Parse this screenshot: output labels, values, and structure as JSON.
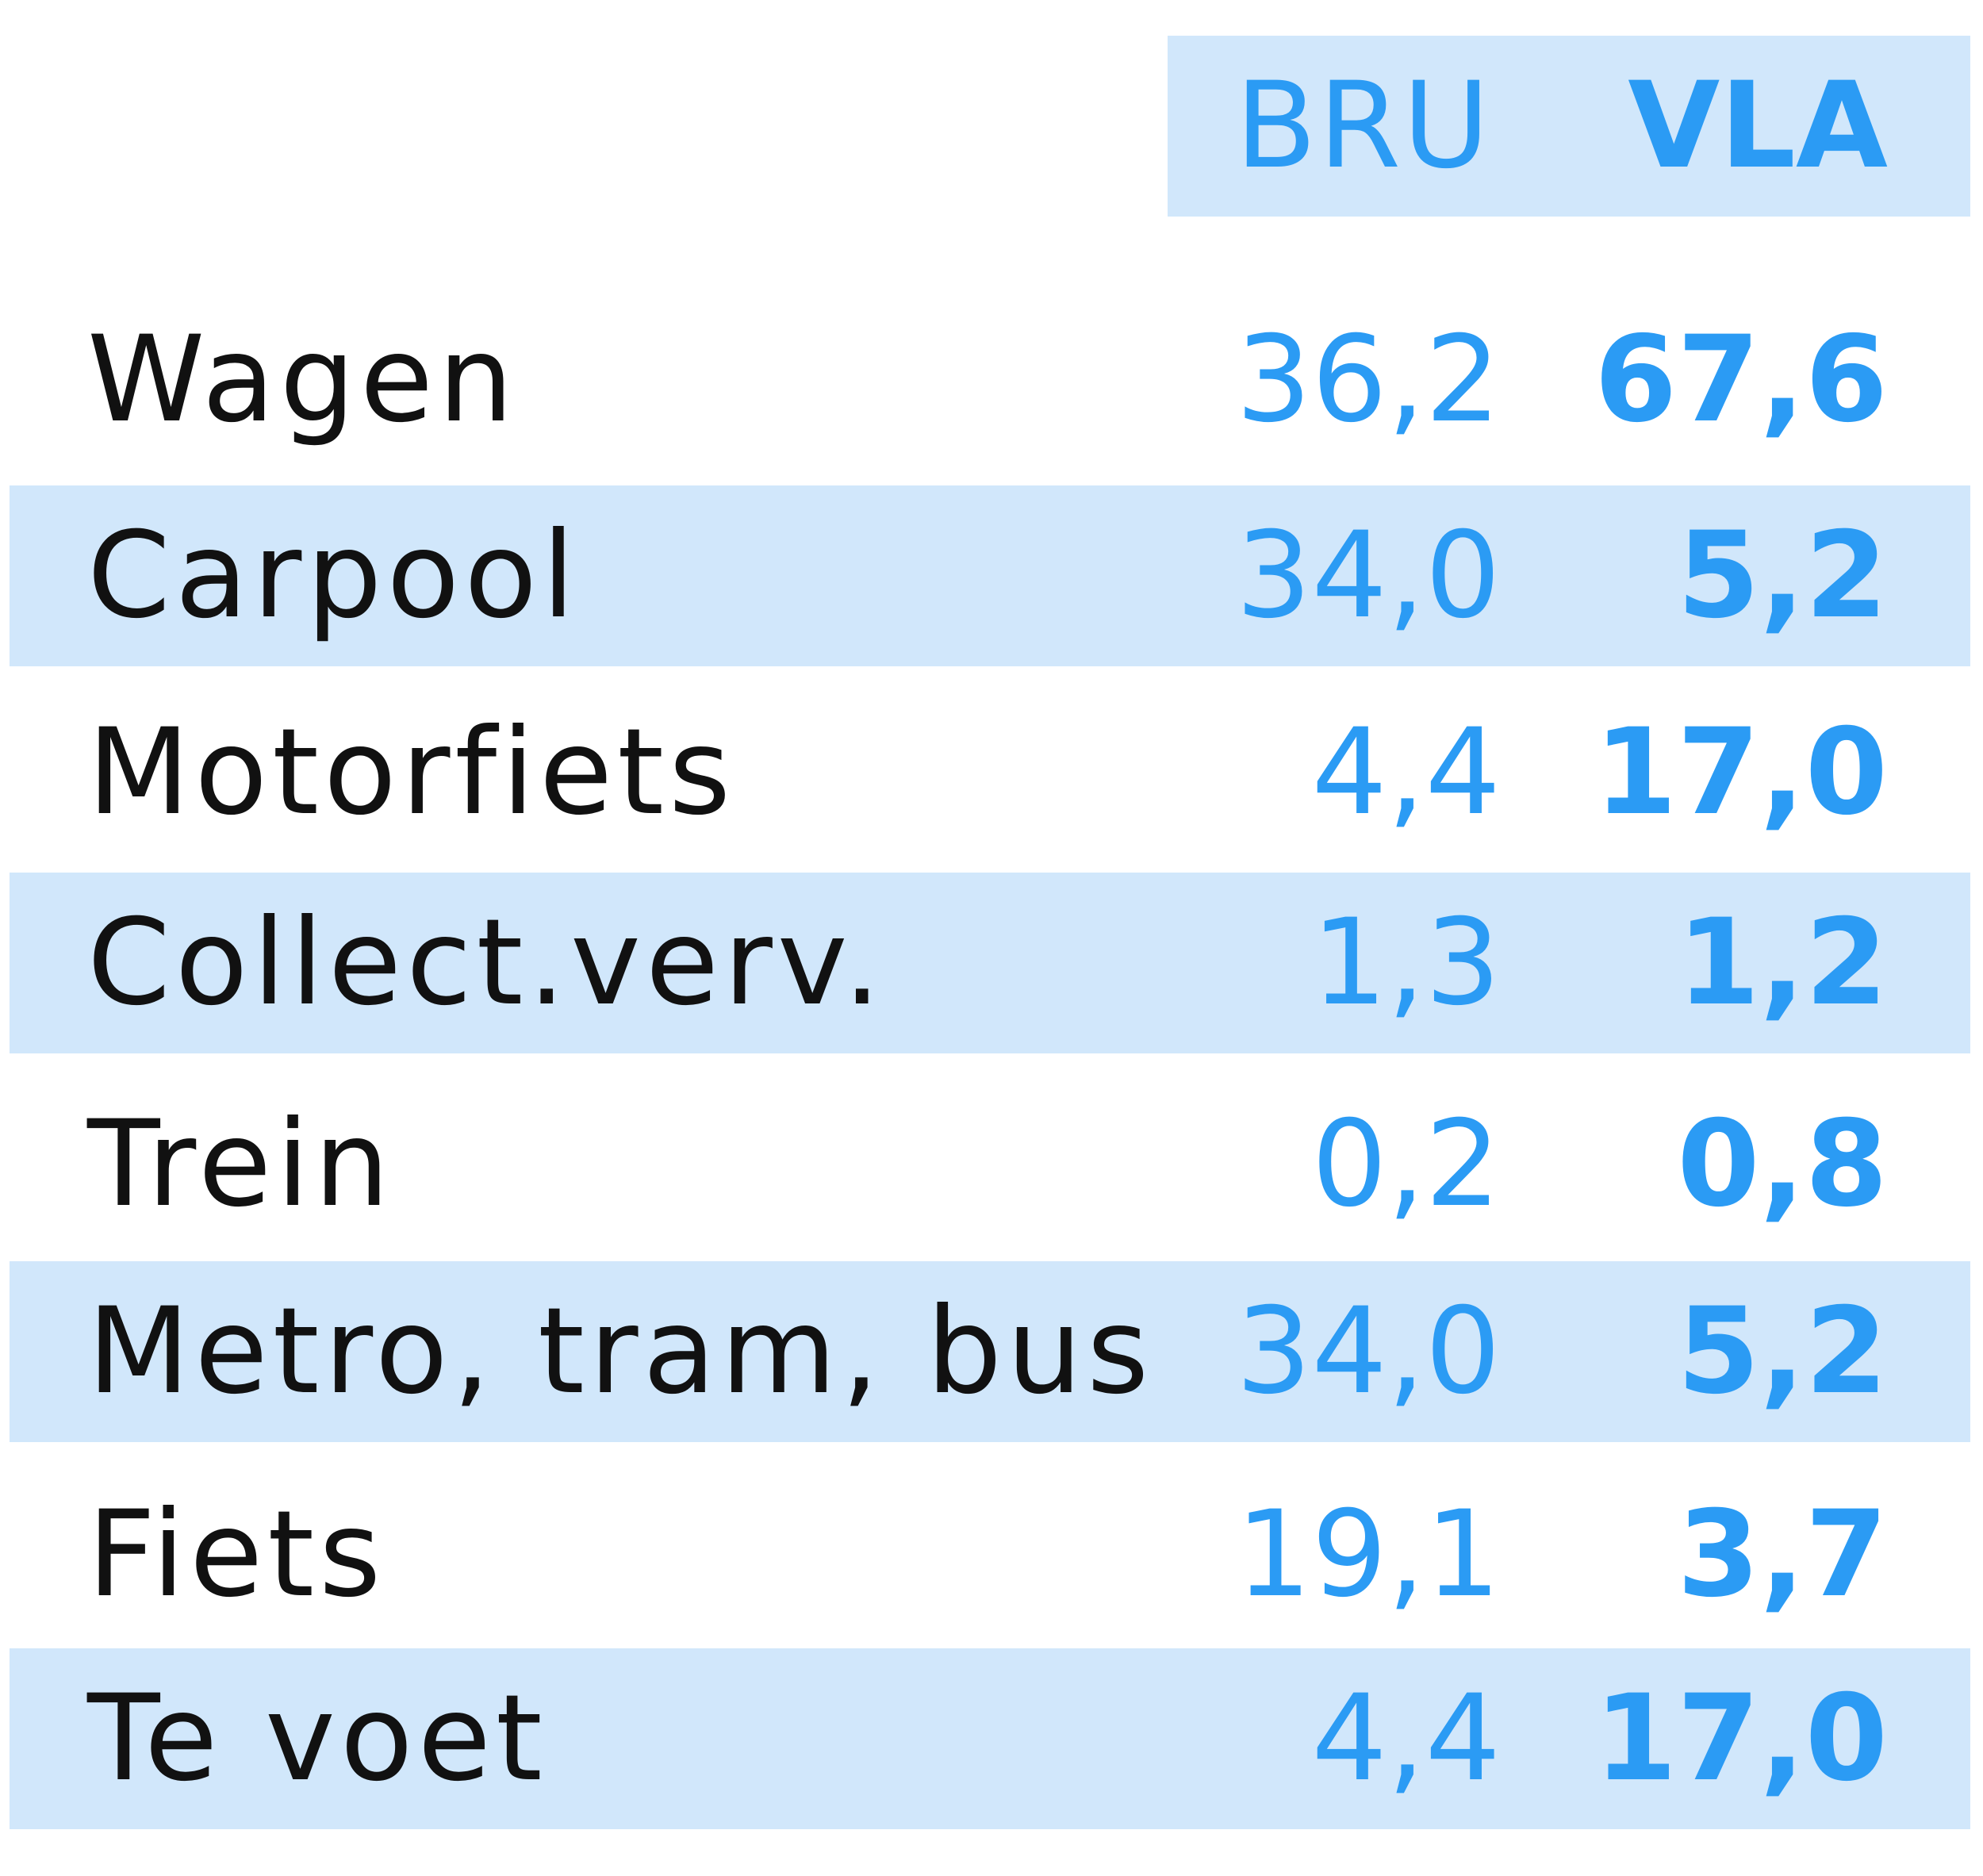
{
  "chart_data": {
    "type": "table",
    "columns": [
      "BRU",
      "VLA"
    ],
    "rows": [
      {
        "label": "Wagen",
        "bru": "36,2",
        "vla": "67,6"
      },
      {
        "label": "Carpool",
        "bru": "34,0",
        "vla": "5,2"
      },
      {
        "label": "Motorfiets",
        "bru": "4,4",
        "vla": "17,0"
      },
      {
        "label": "Collect.verv.",
        "bru": "1,3",
        "vla": "1,2"
      },
      {
        "label": "Trein",
        "bru": "0,2",
        "vla": "0,8"
      },
      {
        "label": "Metro, tram, bus",
        "bru": "34,0",
        "vla": "5,2"
      },
      {
        "label": "Fiets",
        "bru": "19,1",
        "vla": "3,7"
      },
      {
        "label": "Te voet",
        "bru": "4,4",
        "vla": "17,0"
      }
    ],
    "colors": {
      "accent": "#2b9bf4",
      "band": "#d1e7fb",
      "label": "#111111"
    }
  }
}
